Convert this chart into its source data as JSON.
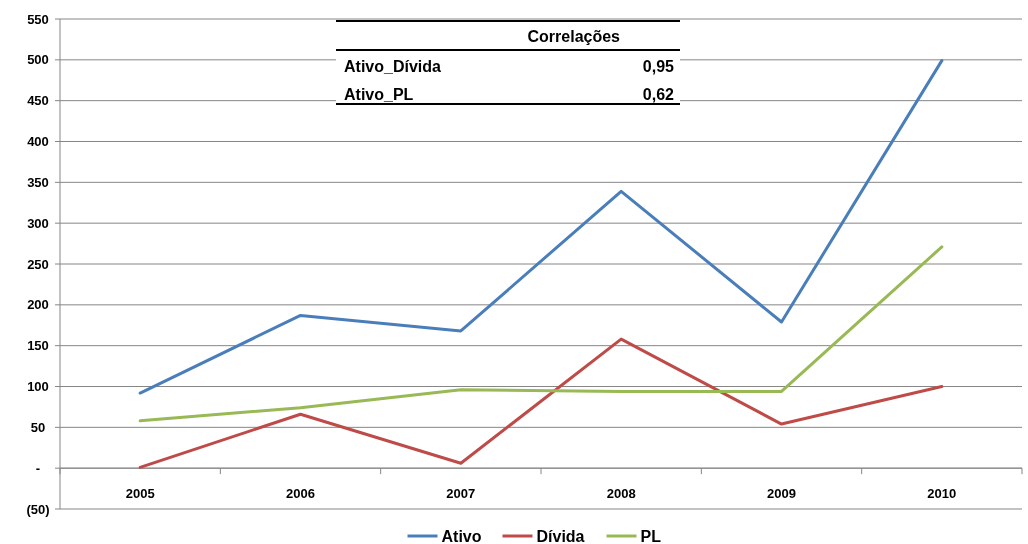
{
  "chart_data": {
    "type": "line",
    "categories": [
      "2005",
      "2006",
      "2007",
      "2008",
      "2009",
      "2010"
    ],
    "series": [
      {
        "name": "Ativo",
        "color": "#4a7ebb",
        "values": [
          92,
          187,
          168,
          339,
          179,
          499
        ]
      },
      {
        "name": "Dívida",
        "color": "#be4b48",
        "values": [
          1,
          66,
          6,
          158,
          54,
          100
        ]
      },
      {
        "name": "PL",
        "color": "#98b954",
        "values": [
          58,
          74,
          96,
          94,
          94,
          271
        ]
      }
    ],
    "ylim": [
      -50,
      550
    ],
    "yticks": [
      {
        "value": -50,
        "label": "(50)"
      },
      {
        "value": 0,
        "label": "-"
      },
      50,
      100,
      150,
      200,
      250,
      300,
      350,
      400,
      450,
      500,
      550
    ],
    "grid": "y",
    "legend": "bottom",
    "marker": "none",
    "line_style": "solid",
    "annotations": [
      "Correlações",
      "Ativo_Dívida",
      "0,95",
      "Ativo_PL",
      "0,62"
    ]
  }
}
